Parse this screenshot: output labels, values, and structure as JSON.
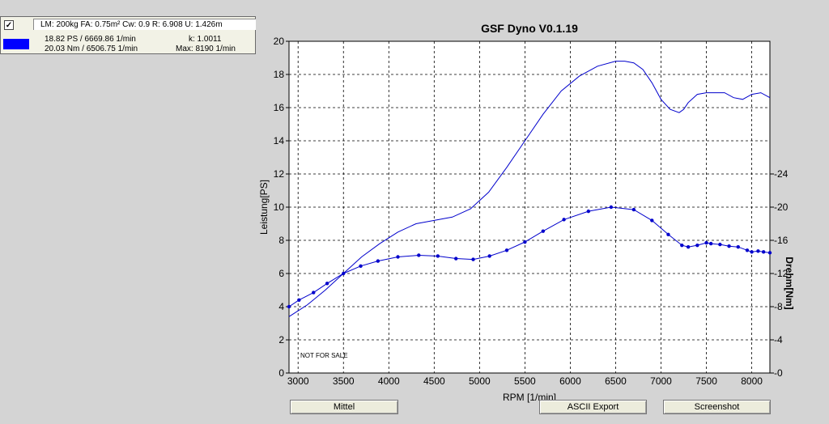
{
  "legend": {
    "checked_mark": "✓",
    "params": "LM: 200kg  FA: 0.75m²  Cw: 0.9  R: 6.908  U: 1.426m",
    "power_line": "18.82 PS / 6669.86 1/min",
    "torque_line": "20.03 Nm / 6506.75 1/min",
    "k_line": "k: 1.0011",
    "max_line": "Max: 8190 1/min",
    "swatch_color": "#0000ff"
  },
  "buttons": {
    "mittel": "Mittel",
    "ascii": "ASCII Export",
    "screenshot": "Screenshot"
  },
  "chart_data": {
    "type": "line",
    "title": "GSF Dyno V0.1.19",
    "xlabel": "RPM [1/min]",
    "ylabel": "Leistung[PS]",
    "y2label": "Drehm[Nm]",
    "watermark": "NOT FOR SALE",
    "xlim": [
      2900,
      8200
    ],
    "ylim": [
      0,
      20
    ],
    "y2lim": [
      0,
      40
    ],
    "x_ticks": [
      3000,
      3500,
      4000,
      4500,
      5000,
      5500,
      6000,
      6500,
      7000,
      7500,
      8000
    ],
    "y_ticks": [
      0,
      2,
      4,
      6,
      8,
      10,
      12,
      14,
      16,
      18,
      20
    ],
    "y2_ticks": [
      0,
      4,
      8,
      12,
      16,
      20,
      24
    ],
    "grid": true,
    "color": "#0000cc",
    "series": [
      {
        "axis": "left",
        "markers": false,
        "x": [
          2900,
          3100,
          3300,
          3500,
          3700,
          3900,
          4100,
          4300,
          4500,
          4700,
          4900,
          5100,
          5300,
          5500,
          5700,
          5900,
          6100,
          6300,
          6500,
          6600,
          6700,
          6800,
          6900,
          7000,
          7100,
          7200,
          7250,
          7300,
          7400,
          7500,
          7600,
          7700,
          7800,
          7900,
          8000,
          8100,
          8200
        ],
        "values": [
          3.4,
          4.1,
          5.0,
          6.0,
          7.0,
          7.8,
          8.5,
          9.0,
          9.2,
          9.4,
          9.9,
          10.9,
          12.4,
          14.0,
          15.6,
          17.0,
          17.9,
          18.5,
          18.8,
          18.8,
          18.7,
          18.3,
          17.5,
          16.5,
          15.9,
          15.7,
          15.9,
          16.3,
          16.8,
          16.9,
          16.9,
          16.9,
          16.6,
          16.5,
          16.8,
          16.9,
          16.6
        ]
      },
      {
        "axis": "right",
        "markers": true,
        "x": [
          2900,
          3010,
          3170,
          3320,
          3500,
          3690,
          3880,
          4100,
          4330,
          4540,
          4740,
          4930,
          5110,
          5300,
          5500,
          5700,
          5930,
          6200,
          6450,
          6700,
          6900,
          7080,
          7230,
          7300,
          7400,
          7500,
          7550,
          7650,
          7750,
          7850,
          7950,
          8000,
          8070,
          8130,
          8200
        ],
        "values": [
          8.0,
          8.8,
          9.7,
          10.8,
          12.0,
          12.9,
          13.5,
          14.0,
          14.2,
          14.1,
          13.8,
          13.7,
          14.1,
          14.8,
          15.8,
          17.1,
          18.5,
          19.5,
          20.0,
          19.7,
          18.4,
          16.7,
          15.4,
          15.2,
          15.4,
          15.7,
          15.6,
          15.5,
          15.3,
          15.2,
          14.8,
          14.6,
          14.7,
          14.6,
          14.5
        ]
      }
    ]
  }
}
